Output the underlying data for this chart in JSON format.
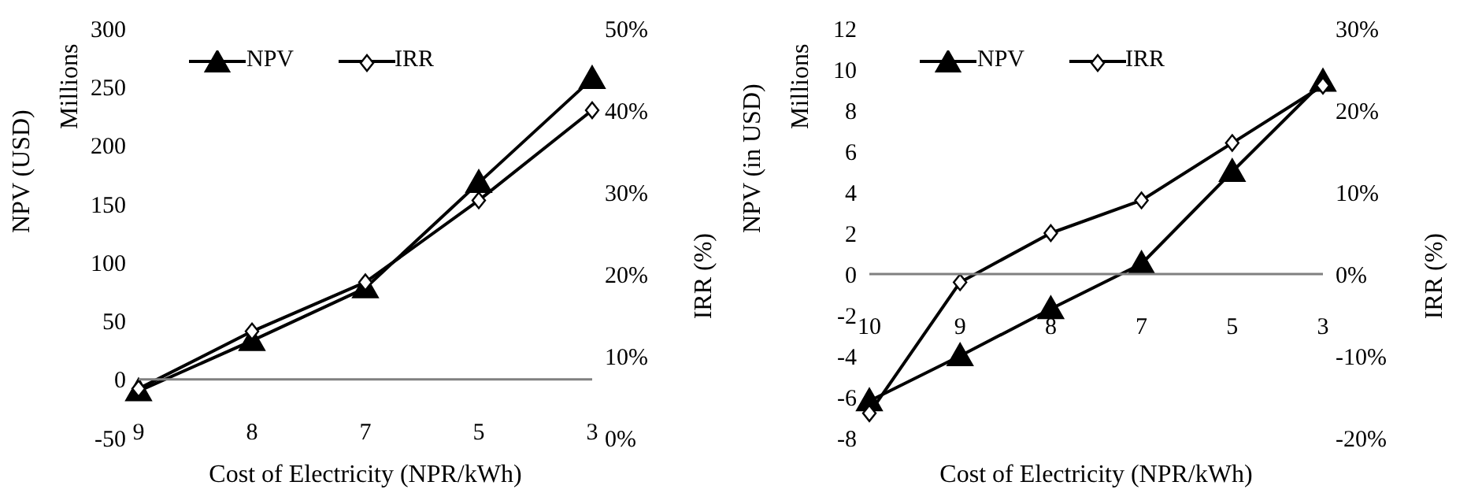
{
  "chart_data": [
    {
      "type": "line",
      "xlabel": "Cost of Electricity (NPR/kWh)",
      "ylabel": "NPV (USD)",
      "y2label": "IRR (%)",
      "annotations": [
        "Millions"
      ],
      "categories": [
        "9",
        "8",
        "7",
        "5",
        "3"
      ],
      "series": [
        {
          "name": "NPV",
          "color": "#000000",
          "marker": "triangle",
          "values": [
            -10,
            33,
            78,
            168,
            257
          ]
        },
        {
          "name": "IRR",
          "color": "#000000",
          "marker": "diamond",
          "axis": "y2",
          "values": [
            6,
            13,
            19,
            29,
            40
          ]
        }
      ],
      "ylim": [
        -50,
        300
      ],
      "yticks": [
        -50,
        0,
        50,
        100,
        150,
        200,
        250,
        300
      ],
      "y2lim": [
        0,
        50
      ],
      "y2ticks": [
        {
          "value": 0,
          "label": "0%"
        },
        {
          "value": 10,
          "label": "10%"
        },
        {
          "value": 20,
          "label": "20%"
        },
        {
          "value": 30,
          "label": "30%"
        },
        {
          "value": 40,
          "label": "40%"
        },
        {
          "value": 50,
          "label": "50%"
        }
      ],
      "grid": false,
      "legend": "top"
    },
    {
      "type": "line",
      "xlabel": "Cost of Electricity (NPR/kWh)",
      "ylabel": "NPV (in USD)",
      "y2label": "IRR (%)",
      "annotations": [
        "Millions"
      ],
      "categories": [
        "10",
        "9",
        "8",
        "7",
        "5",
        "3"
      ],
      "series": [
        {
          "name": "NPV",
          "color": "#000000",
          "marker": "triangle",
          "values": [
            -6.2,
            -4,
            -1.7,
            0.5,
            5,
            9.4
          ]
        },
        {
          "name": "IRR",
          "color": "#000000",
          "marker": "diamond",
          "axis": "y2",
          "values": [
            -17,
            -1,
            5,
            9,
            16,
            23
          ]
        }
      ],
      "ylim": [
        -8,
        12
      ],
      "yticks": [
        -8,
        -6,
        -4,
        -2,
        0,
        2,
        4,
        6,
        8,
        10,
        12
      ],
      "y2lim": [
        -20,
        30
      ],
      "y2ticks": [
        {
          "value": -20,
          "label": "-20%"
        },
        {
          "value": -10,
          "label": "-10%"
        },
        {
          "value": 0,
          "label": "0%"
        },
        {
          "value": 10,
          "label": "10%"
        },
        {
          "value": 20,
          "label": "20%"
        },
        {
          "value": 30,
          "label": "30%"
        }
      ],
      "grid": false,
      "legend": "top"
    }
  ]
}
